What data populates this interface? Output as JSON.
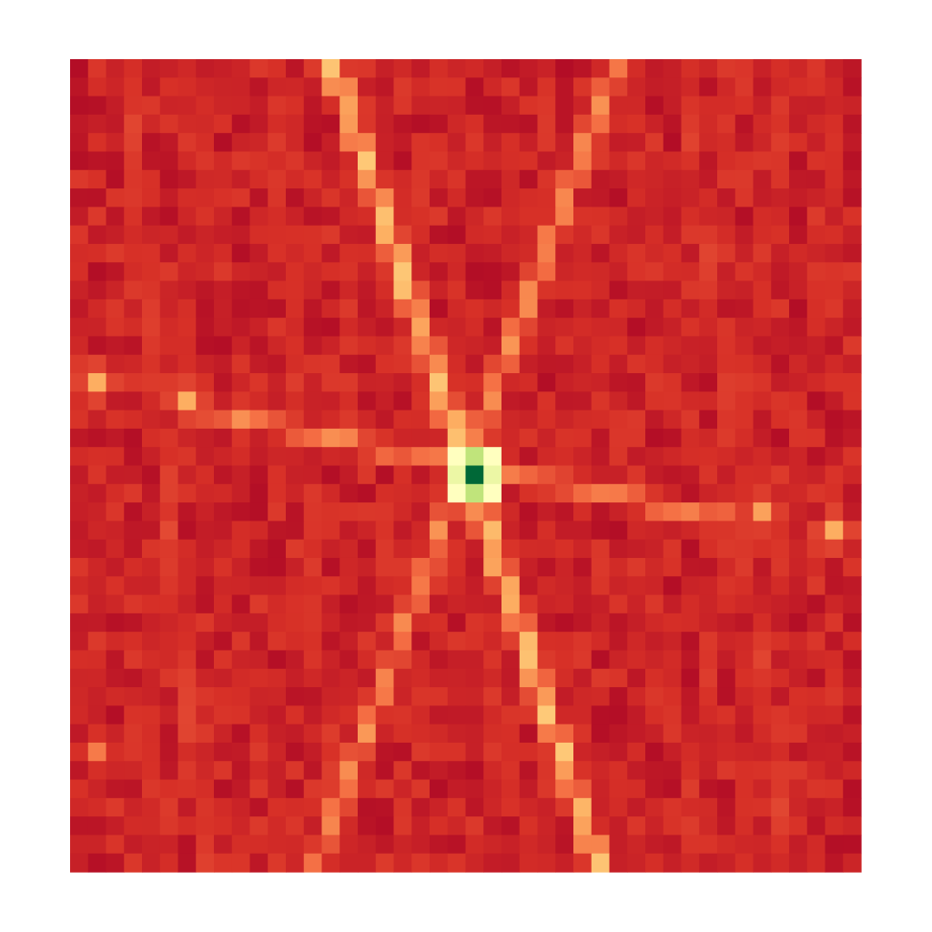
{
  "chart_data": {
    "type": "heatmap",
    "title": "",
    "xlabel": "",
    "ylabel": "",
    "grid": false,
    "axes_visible": false,
    "colorbar": false,
    "colormap": "RdYlGn",
    "colormap_stops": [
      "#a50026",
      "#d73027",
      "#f46d43",
      "#fdae61",
      "#fee08b",
      "#ffffbf",
      "#d9ef8b",
      "#a6d96a",
      "#66bd63",
      "#1a9850",
      "#006837"
    ],
    "columns": 44,
    "rows": 44,
    "value_range": [
      0,
      1
    ],
    "background_value": 0.08,
    "peak": {
      "column": 22,
      "row": 22,
      "value": 1.0,
      "neighbor_value": 0.55
    },
    "bright_spots": [
      {
        "column": 1,
        "row": 17,
        "value": 0.3
      },
      {
        "column": 6,
        "row": 18,
        "value": 0.3
      },
      {
        "column": 38,
        "row": 24,
        "value": 0.28
      },
      {
        "column": 42,
        "row": 25,
        "value": 0.3
      },
      {
        "column": 1,
        "row": 37,
        "value": 0.22
      }
    ],
    "streaks": [
      {
        "from": [
          14.5,
          0
        ],
        "to": [
          22,
          22
        ],
        "value": 0.33
      },
      {
        "from": [
          22,
          22
        ],
        "to": [
          29.5,
          44
        ],
        "value": 0.33
      },
      {
        "from": [
          30.5,
          0
        ],
        "to": [
          22,
          22
        ],
        "value": 0.24
      },
      {
        "from": [
          22,
          22
        ],
        "to": [
          13.5,
          44
        ],
        "value": 0.24
      },
      {
        "from": [
          7,
          19
        ],
        "to": [
          22,
          22
        ],
        "value": 0.22
      },
      {
        "from": [
          22,
          22
        ],
        "to": [
          37,
          25
        ],
        "value": 0.22
      },
      {
        "from": [
          3,
          0
        ],
        "to": [
          7.5,
          44
        ],
        "value": 0.13
      },
      {
        "from": [
          8,
          0
        ],
        "to": [
          4,
          44
        ],
        "value": 0.1
      },
      {
        "from": [
          11,
          0
        ],
        "to": [
          15,
          44
        ],
        "value": 0.11
      },
      {
        "from": [
          17,
          10
        ],
        "to": [
          26,
          44
        ],
        "value": 0.1
      },
      {
        "from": [
          26,
          0
        ],
        "to": [
          34,
          36
        ],
        "value": 0.1
      },
      {
        "from": [
          34,
          0
        ],
        "to": [
          40,
          44
        ],
        "value": 0.12
      },
      {
        "from": [
          40,
          0
        ],
        "to": [
          34,
          44
        ],
        "value": 0.11
      },
      {
        "from": [
          43,
          2
        ],
        "to": [
          37,
          44
        ],
        "value": 0.1
      },
      {
        "from": [
          30,
          0
        ],
        "to": [
          40,
          44
        ],
        "value": 0.09
      },
      {
        "from": [
          5,
          12
        ],
        "to": [
          12,
          44
        ],
        "value": 0.09
      }
    ]
  }
}
